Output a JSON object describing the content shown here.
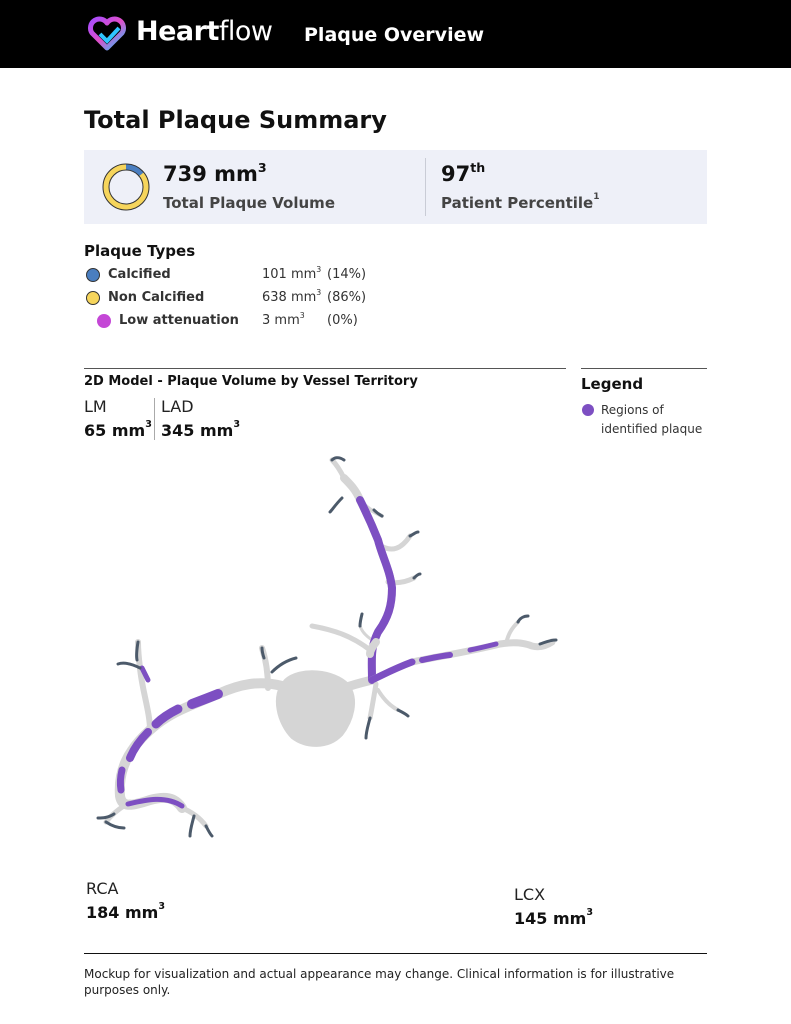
{
  "header": {
    "brand_bold": "Heart",
    "brand_light": "flow",
    "page_title": "Plaque Overview"
  },
  "summary": {
    "heading": "Total Plaque Summary",
    "total_volume_value": "739 mm",
    "total_volume_unit_sup": "3",
    "total_volume_label": "Total Plaque Volume",
    "percentile_value": "97",
    "percentile_sup": "th",
    "percentile_label": "Patient Percentile",
    "percentile_label_sup": "1"
  },
  "plaque_types": {
    "title": "Plaque Types",
    "items": [
      {
        "name": "Calcified",
        "volume": "101 mm",
        "sup": "3",
        "percent": "(14%)",
        "color": "#4a7ec0"
      },
      {
        "name": "Non Calcified",
        "volume": "638 mm",
        "sup": "3",
        "percent": "(86%)",
        "color": "#f6d55c"
      },
      {
        "name": "Low attenuation",
        "volume": "3 mm",
        "sup": "3",
        "percent": "(0%)",
        "color": "#c447d6"
      }
    ]
  },
  "donut_fraction_calcified": 0.14,
  "model": {
    "title": "2D Model - Plaque Volume by Vessel Territory",
    "territories": {
      "lm": {
        "name": "LM",
        "value": "65 mm",
        "sup": "3"
      },
      "lad": {
        "name": "LAD",
        "value": "345 mm",
        "sup": "3"
      },
      "rca": {
        "name": "RCA",
        "value": "184 mm",
        "sup": "3"
      },
      "lcx": {
        "name": "LCX",
        "value": "145 mm",
        "sup": "3"
      }
    }
  },
  "legend": {
    "title": "Legend",
    "item_label": "Regions of identified plaque",
    "item_color": "#7d4fc2"
  },
  "colors": {
    "vessel": "#d5d5d5",
    "plaque": "#7d4fc2",
    "vessel_end": "#4c5a6a"
  },
  "footer": {
    "disclaimer": "Mockup for visualization and actual appearance may change. Clinical information is for illustrative purposes only."
  }
}
